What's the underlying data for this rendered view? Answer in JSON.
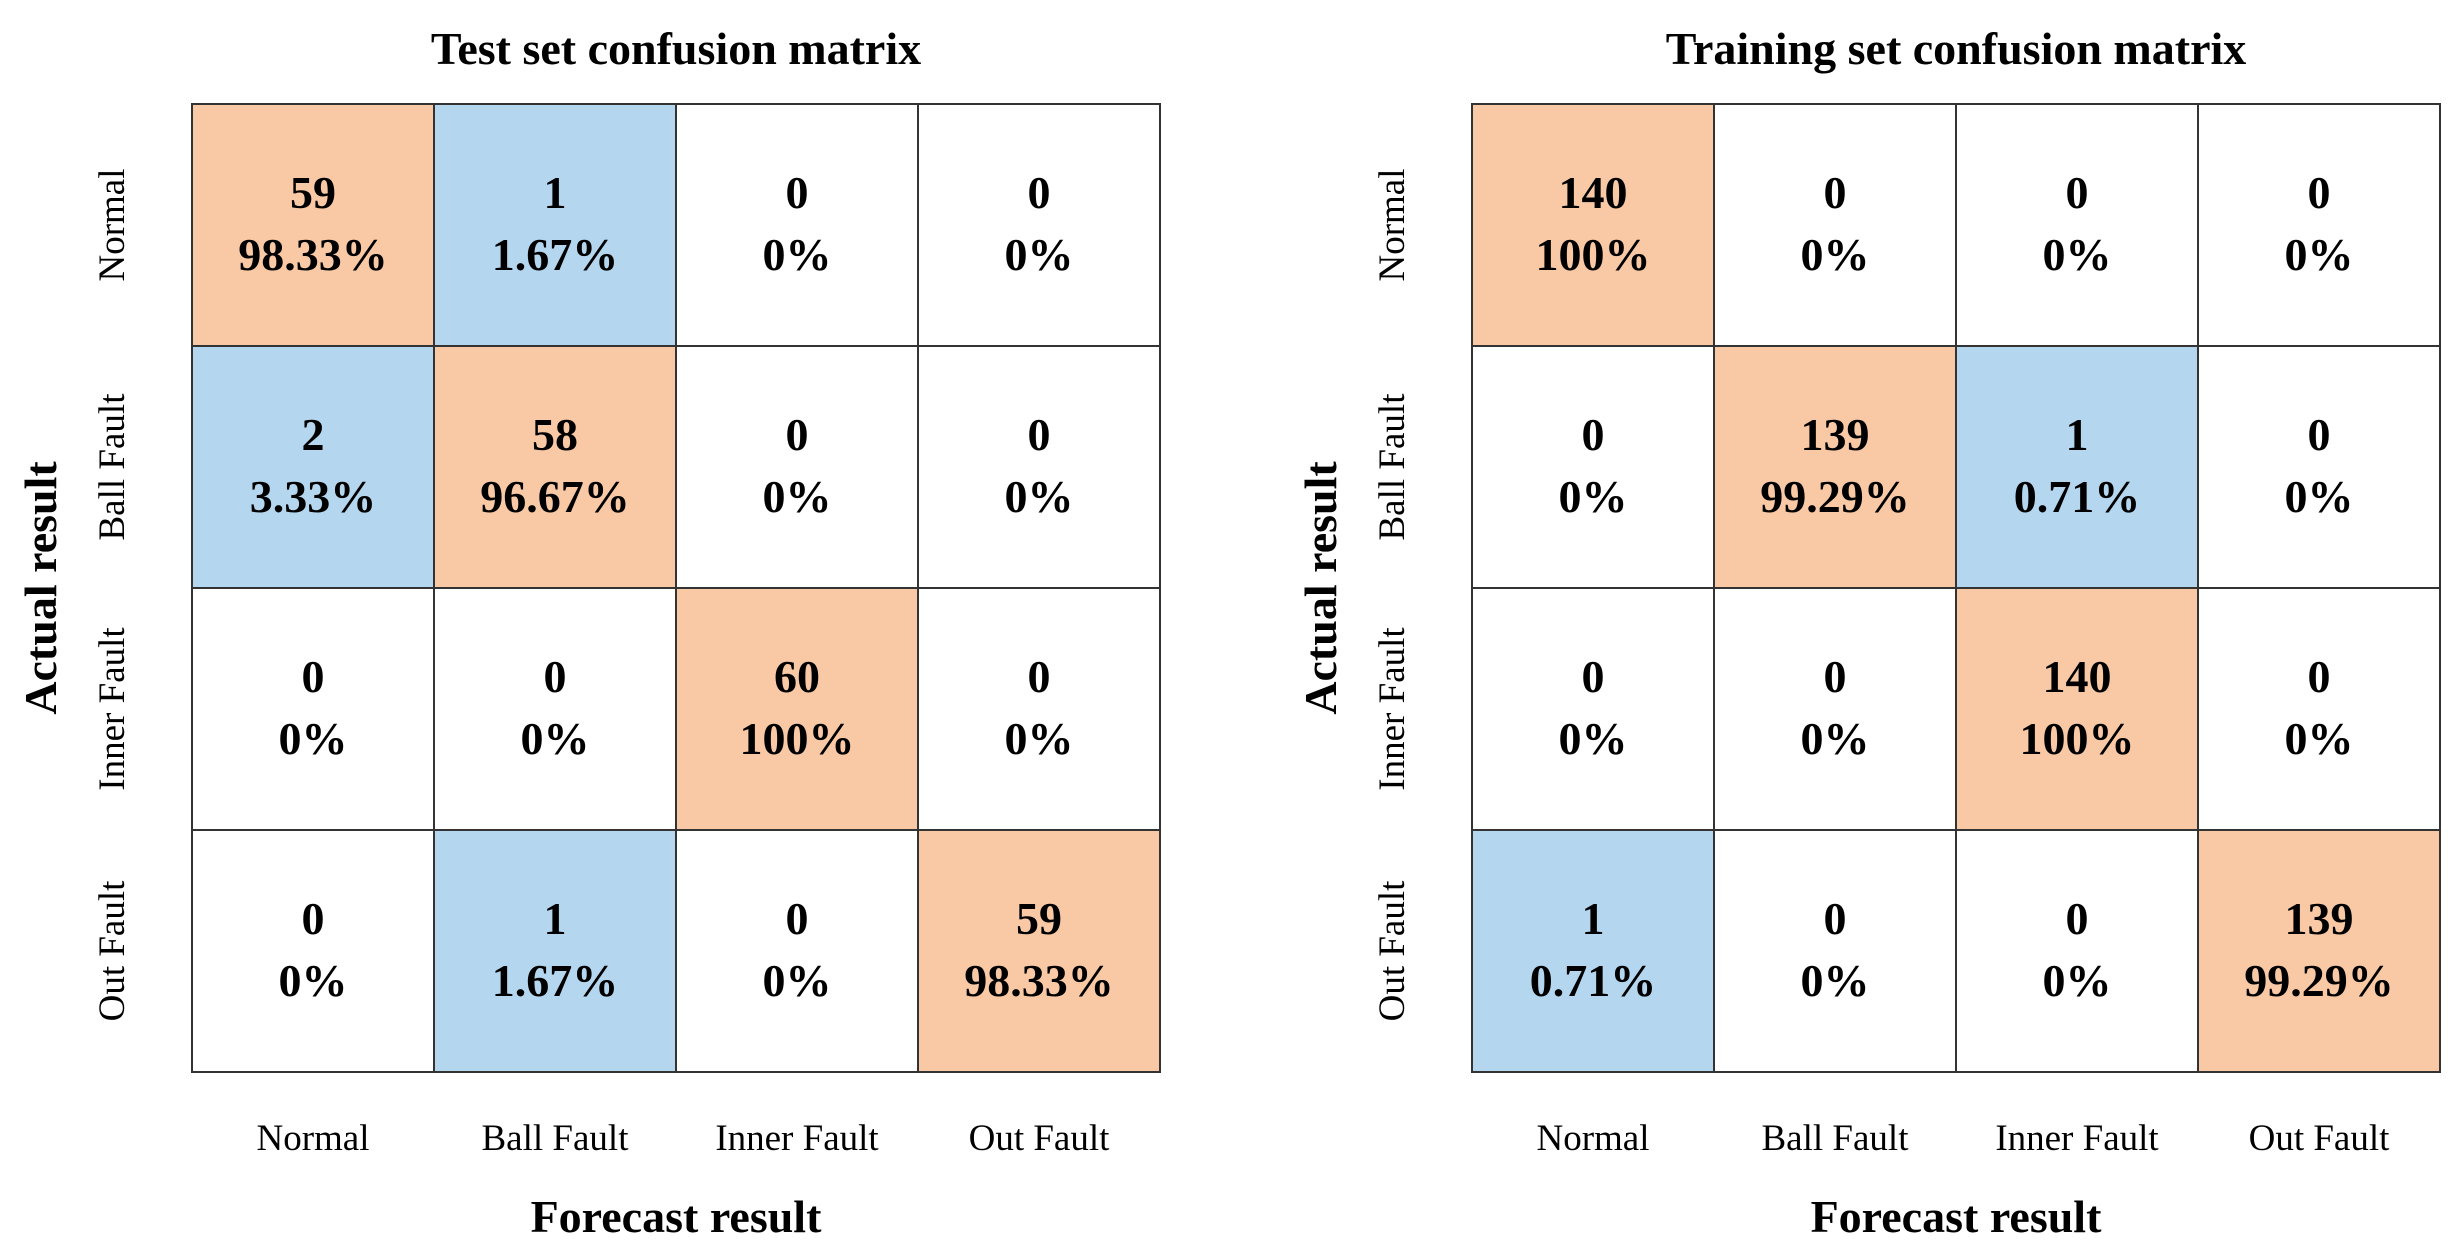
{
  "colors": {
    "diagonal": "#f9c9a6",
    "error": "#b4d6ee",
    "empty": "#ffffff"
  },
  "chart_data": [
    {
      "type": "heatmap",
      "title": "Test set confusion matrix",
      "xlabel": "Forecast result",
      "ylabel": "Actual result",
      "x_categories": [
        "Normal",
        "Ball Fault",
        "Inner Fault",
        "Out Fault"
      ],
      "y_categories": [
        "Normal",
        "Ball Fault",
        "Inner Fault",
        "Out Fault"
      ],
      "counts": [
        [
          59,
          1,
          0,
          0
        ],
        [
          2,
          58,
          0,
          0
        ],
        [
          0,
          0,
          60,
          0
        ],
        [
          0,
          1,
          0,
          59
        ]
      ],
      "percentages": [
        [
          "98.33%",
          "1.67%",
          "0%",
          "0%"
        ],
        [
          "3.33%",
          "96.67%",
          "0%",
          "0%"
        ],
        [
          "0%",
          "0%",
          "100%",
          "0%"
        ],
        [
          "0%",
          "1.67%",
          "0%",
          "98.33%"
        ]
      ]
    },
    {
      "type": "heatmap",
      "title": "Training set confusion matrix",
      "xlabel": "Forecast result",
      "ylabel": "Actual result",
      "x_categories": [
        "Normal",
        "Ball Fault",
        "Inner Fault",
        "Out Fault"
      ],
      "y_categories": [
        "Normal",
        "Ball Fault",
        "Inner Fault",
        "Out Fault"
      ],
      "counts": [
        [
          140,
          0,
          0,
          0
        ],
        [
          0,
          139,
          1,
          0
        ],
        [
          0,
          0,
          140,
          0
        ],
        [
          1,
          0,
          0,
          139
        ]
      ],
      "percentages": [
        [
          "100%",
          "0%",
          "0%",
          "0%"
        ],
        [
          "0%",
          "99.29%",
          "0.71%",
          "0%"
        ],
        [
          "0%",
          "0%",
          "100%",
          "0%"
        ],
        [
          "0.71%",
          "0%",
          "0%",
          "99.29%"
        ]
      ]
    }
  ]
}
